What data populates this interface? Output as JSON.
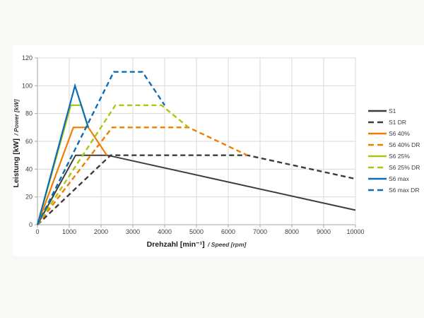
{
  "page": {
    "background": "#f8f8f6",
    "panel_background": "#ffffff",
    "grid_color": "#dadada",
    "axis_color": "#a6a6a6",
    "label_color": "#3c3c3b"
  },
  "chart_data": {
    "type": "line",
    "title": "",
    "xlabel_primary": "Drehzahl [min⁻¹]",
    "xlabel_secondary": "/ Speed [rpm]",
    "ylabel_primary": "Leistung [kW]",
    "ylabel_secondary": "/ Power [kW]",
    "xlim": [
      0,
      10000
    ],
    "ylim": [
      0,
      120
    ],
    "xticks": [
      0,
      1000,
      2000,
      3000,
      4000,
      5000,
      6000,
      7000,
      8000,
      9000,
      10000
    ],
    "yticks": [
      0,
      20,
      40,
      60,
      80,
      100,
      120
    ],
    "grid": true,
    "legend_position": "right",
    "series": [
      {
        "name": "S1",
        "color": "#3c3c3b",
        "dashed": false,
        "width": 2.0,
        "points": [
          [
            0,
            0
          ],
          [
            1200,
            50
          ],
          [
            2200,
            50
          ],
          [
            10000,
            10.5
          ]
        ]
      },
      {
        "name": "S1 DR",
        "color": "#3c3c3b",
        "dashed": true,
        "width": 2.4,
        "points": [
          [
            0,
            0
          ],
          [
            2300,
            50
          ],
          [
            6600,
            50
          ],
          [
            10000,
            33
          ]
        ]
      },
      {
        "name": "S6 40%",
        "color": "#f07d00",
        "dashed": false,
        "width": 2.2,
        "points": [
          [
            0,
            0
          ],
          [
            1130,
            70
          ],
          [
            1600,
            70
          ],
          [
            2180,
            50
          ]
        ]
      },
      {
        "name": "S6 40% DR",
        "color": "#f07d00",
        "dashed": true,
        "width": 2.4,
        "points": [
          [
            0,
            0
          ],
          [
            2350,
            70
          ],
          [
            4750,
            70
          ],
          [
            6600,
            50
          ]
        ]
      },
      {
        "name": "S6 25%",
        "color": "#a9c712",
        "dashed": false,
        "width": 2.2,
        "points": [
          [
            0,
            0
          ],
          [
            1050,
            86
          ],
          [
            1380,
            86
          ],
          [
            1590,
            70
          ]
        ]
      },
      {
        "name": "S6 25% DR",
        "color": "#a9c712",
        "dashed": true,
        "width": 2.4,
        "points": [
          [
            0,
            0
          ],
          [
            2450,
            86
          ],
          [
            3900,
            86
          ],
          [
            4750,
            70
          ]
        ]
      },
      {
        "name": "S6 max",
        "color": "#0d6cb5",
        "dashed": false,
        "width": 2.2,
        "points": [
          [
            0,
            0
          ],
          [
            1180,
            100
          ],
          [
            1600,
            70
          ]
        ]
      },
      {
        "name": "S6 max DR",
        "color": "#0d6cb5",
        "dashed": true,
        "width": 2.4,
        "points": [
          [
            0,
            0
          ],
          [
            2400,
            110
          ],
          [
            3300,
            110
          ],
          [
            4000,
            86
          ]
        ]
      }
    ]
  },
  "legend": {
    "items": [
      {
        "label": "S1",
        "color": "#3c3c3b",
        "dashed": false
      },
      {
        "label": "S1 DR",
        "color": "#3c3c3b",
        "dashed": true
      },
      {
        "label": "S6 40%",
        "color": "#f07d00",
        "dashed": false
      },
      {
        "label": "S6 40% DR",
        "color": "#f07d00",
        "dashed": true
      },
      {
        "label": "S6 25%",
        "color": "#a9c712",
        "dashed": false
      },
      {
        "label": "S6 25% DR",
        "color": "#a9c712",
        "dashed": true
      },
      {
        "label": "S6 max",
        "color": "#0d6cb5",
        "dashed": false
      },
      {
        "label": "S6 max DR",
        "color": "#0d6cb5",
        "dashed": true
      }
    ]
  }
}
